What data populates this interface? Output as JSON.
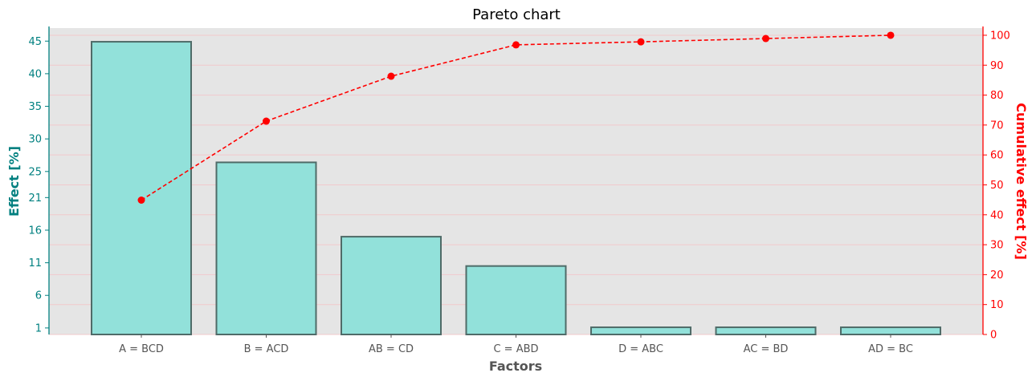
{
  "chart_data": {
    "type": "bar",
    "title": "Pareto chart",
    "xlabel": "Factors",
    "ylabel": "Effect [%]",
    "y2label": "Cumulative effect [%]",
    "categories": [
      "A = BCD",
      "B = ACD",
      "AB = CD",
      "C = ABD",
      "D = ABC",
      "AC = BD",
      "AD = BC"
    ],
    "series": [
      {
        "type": "bar",
        "axis": "left",
        "values": [
          44.9,
          26.4,
          15.0,
          10.5,
          1.1,
          1.1,
          1.1
        ]
      },
      {
        "type": "line",
        "axis": "right",
        "values": [
          44.9,
          71.3,
          86.3,
          96.8,
          97.8,
          98.9,
          100.0
        ]
      }
    ],
    "y_ticks": [
      1,
      6,
      11,
      16,
      21,
      25,
      30,
      35,
      40,
      45
    ],
    "y_range": [
      0,
      47
    ],
    "y2_ticks": [
      0,
      10,
      20,
      30,
      40,
      50,
      60,
      70,
      80,
      90,
      100
    ],
    "y2_range": [
      0,
      102.4
    ],
    "grid": true,
    "colors": {
      "bar_fill": "#92E1DA",
      "bar_edge": "#4F6B68",
      "line": "#FF0000",
      "left_axis": "#008080",
      "right_axis": "#FF0000",
      "plot_bg": "#E5E5E5",
      "grid": "#F2C9CC",
      "xlabel": "#555555"
    }
  }
}
